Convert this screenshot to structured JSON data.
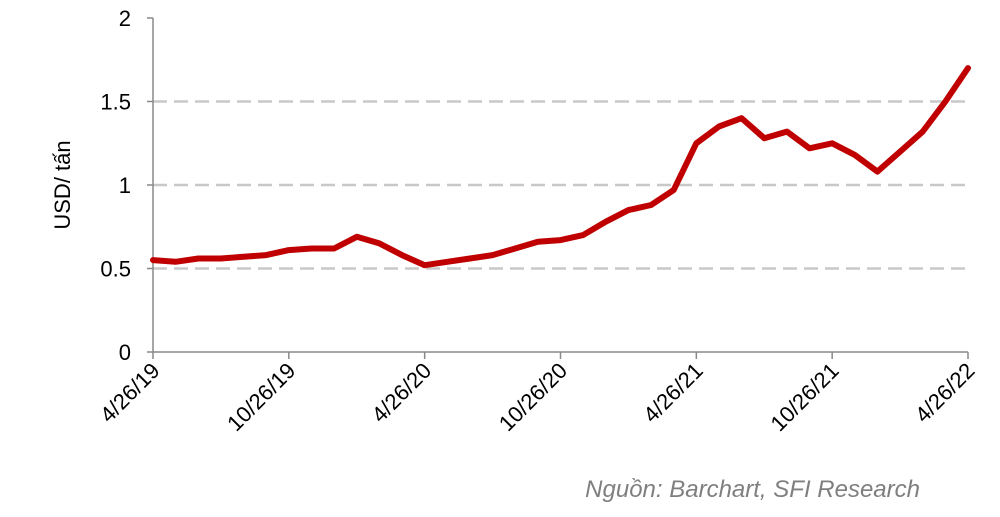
{
  "chart_data": {
    "type": "line",
    "y_label": "USD/ tấn",
    "source": "Nguồn: Barchart, SFI Research",
    "categories": [
      "4/26/19",
      null,
      null,
      null,
      null,
      null,
      "10/26/19",
      null,
      null,
      null,
      null,
      null,
      "4/26/20",
      null,
      null,
      null,
      null,
      null,
      "10/26/20",
      null,
      null,
      null,
      null,
      null,
      "4/26/21",
      null,
      null,
      null,
      null,
      null,
      "10/26/21",
      null,
      null,
      null,
      null,
      null,
      "4/26/22"
    ],
    "series": [
      {
        "name": "USD/ tấn",
        "color": "#c00000",
        "values": [
          0.55,
          0.54,
          0.56,
          0.56,
          0.57,
          0.58,
          0.61,
          0.62,
          0.62,
          0.69,
          0.65,
          0.58,
          0.52,
          0.54,
          0.56,
          0.58,
          0.62,
          0.66,
          0.67,
          0.7,
          0.78,
          0.85,
          0.88,
          0.97,
          1.25,
          1.35,
          1.4,
          1.28,
          1.32,
          1.22,
          1.25,
          1.18,
          1.08,
          1.2,
          1.32,
          1.5,
          1.7
        ]
      }
    ],
    "ylim": [
      0,
      2
    ],
    "yticks": [
      0,
      0.5,
      1,
      1.5,
      2
    ],
    "grid": true
  }
}
